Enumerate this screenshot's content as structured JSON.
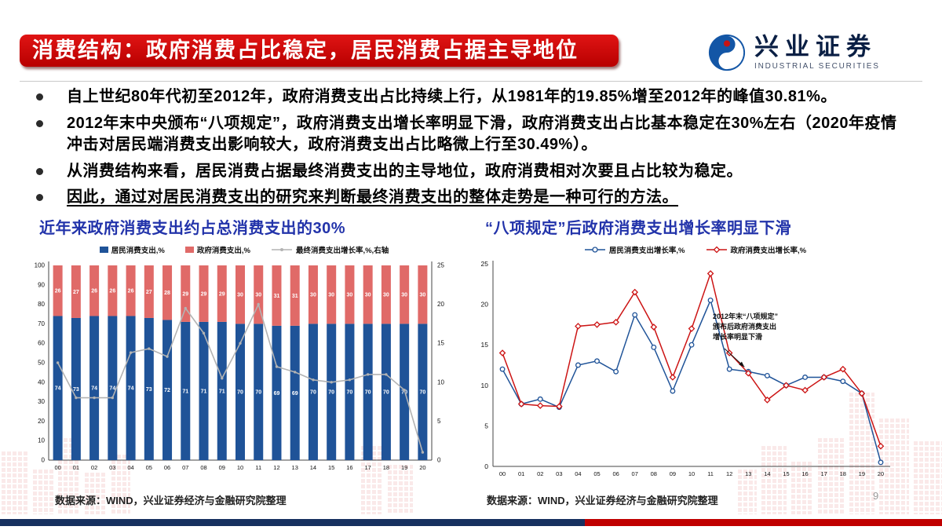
{
  "colors": {
    "title_bar_red": "#c00000",
    "chart_title_blue": "#2233aa",
    "resident_blue": "#1f5398",
    "government_red": "#e06a68",
    "growth_line_gray": "#b3b3b3",
    "government_growth_red": "#cc1414",
    "footer_navy": "#16305f",
    "footer_red": "#c00000"
  },
  "header": {
    "title": "消费结构：政府消费占比稳定，居民消费占据主导地位",
    "logo": {
      "cn": "兴业证券",
      "en": "INDUSTRIAL SECURITIES"
    }
  },
  "bullets": [
    {
      "text": "自上世纪80年代初至2012年，政府消费支出占比持续上行，从1981年的19.85%增至2012年的峰值30.81%。"
    },
    {
      "text": "2012年末中央颁布“八项规定”，政府消费支出增长率明显下滑，政府消费支出占比基本稳定在30%左右（2020年疫情冲击对居民端消费支出影响较大，政府消费支出占比略微上行至30.49%）。"
    },
    {
      "text": "从消费结构来看，居民消费占据最终消费支出的主导地位，政府消费相对次要且占比较为稳定。"
    },
    {
      "text": "因此，通过对居民消费支出的研究来判断最终消费支出的整体走势是一种可行的方法。"
    }
  ],
  "chart_data": [
    {
      "type": "bar",
      "stacked": true,
      "title": "近年来政府消费支出约占总消费支出的30%",
      "categories": [
        "00",
        "01",
        "02",
        "03",
        "04",
        "05",
        "06",
        "07",
        "08",
        "09",
        "10",
        "11",
        "12",
        "13",
        "14",
        "15",
        "16",
        "17",
        "18",
        "19",
        "20"
      ],
      "series": [
        {
          "name": "居民消费支出,%",
          "color": "#1f5398",
          "values": [
            74,
            73,
            74,
            74,
            74,
            73,
            72,
            71,
            71,
            71,
            70,
            70,
            69,
            69,
            70,
            70,
            70,
            70,
            70,
            70,
            70
          ]
        },
        {
          "name": "政府消费支出,%",
          "color": "#e06a68",
          "values": [
            26,
            27,
            26,
            26,
            26,
            27,
            28,
            29,
            29,
            29,
            30,
            30,
            31,
            31,
            30,
            30,
            30,
            30,
            30,
            30,
            30
          ]
        }
      ],
      "line_series": {
        "name": "最终消费支出增长率,%,右轴",
        "color": "#b3b3b3",
        "axis": "right",
        "values": [
          12.5,
          8,
          8,
          8,
          13.8,
          14.3,
          13.3,
          19.5,
          16.3,
          10.5,
          15,
          20,
          12,
          11.3,
          10.3,
          10,
          10.3,
          11,
          11,
          9,
          1
        ]
      },
      "left_axis": {
        "min": 0,
        "max": 100,
        "step": 10
      },
      "right_axis": {
        "min": 0,
        "max": 25,
        "step": 5
      },
      "legend_position": "top",
      "grid": false,
      "source": "数据来源：WIND，兴业证券经济与金融研究院整理"
    },
    {
      "type": "line",
      "title": "“八项规定”后政府消费支出增长率明显下滑",
      "categories": [
        "00",
        "01",
        "02",
        "03",
        "04",
        "05",
        "06",
        "07",
        "08",
        "09",
        "10",
        "11",
        "12",
        "13",
        "14",
        "15",
        "16",
        "17",
        "18",
        "19",
        "20"
      ],
      "series": [
        {
          "name": "居民消费支出增长率,%",
          "color": "#1f5398",
          "marker": "circle",
          "values": [
            12,
            7.7,
            8.3,
            7.3,
            12.5,
            13,
            11.7,
            18.7,
            14.7,
            9.3,
            15,
            20.5,
            12,
            11.7,
            11.2,
            10,
            11,
            11,
            10.5,
            9,
            0.5
          ]
        },
        {
          "name": "政府消费支出增长率,%",
          "color": "#cc1414",
          "marker": "diamond",
          "values": [
            14,
            7.7,
            7.5,
            7.4,
            17.3,
            17.5,
            17.8,
            21.5,
            17.2,
            11,
            17,
            23.8,
            14,
            11.5,
            8.2,
            10,
            9.4,
            11,
            12,
            9,
            2.5
          ]
        }
      ],
      "y_axis": {
        "min": 0,
        "max": 25,
        "step": 5
      },
      "legend_position": "top",
      "grid": false,
      "annotation": {
        "lines": [
          "2012年末“八项规定”",
          "颁布后政府消费支出",
          "增长率明显下滑"
        ],
        "target_index": 13
      },
      "source": "数据来源：WIND，兴业证券经济与金融研究院整理"
    }
  ],
  "footer": {
    "page": "9"
  }
}
